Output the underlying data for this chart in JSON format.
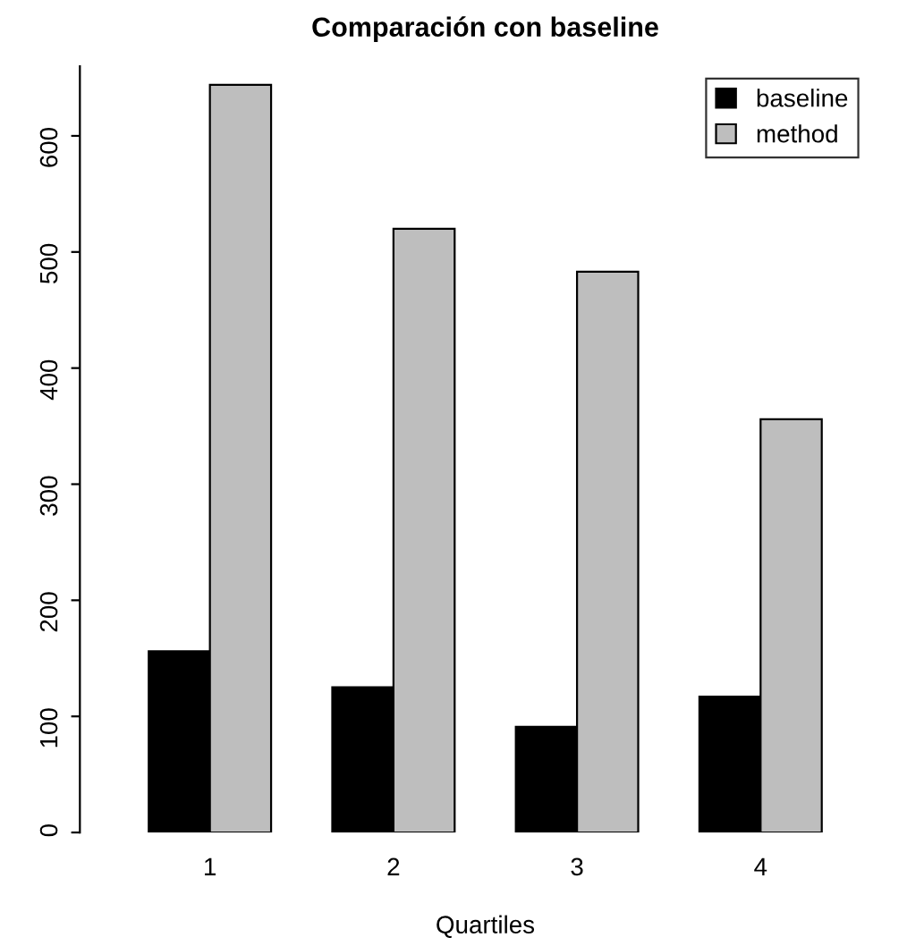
{
  "chart_data": {
    "type": "bar",
    "title": "Comparación con baseline",
    "xlabel": "Quartiles",
    "categories": [
      "1",
      "2",
      "3",
      "4"
    ],
    "series": [
      {
        "name": "baseline",
        "color": "#000000",
        "values": [
          156,
          125,
          91,
          117
        ]
      },
      {
        "name": "method",
        "color": "#bebebe",
        "values": [
          644,
          520,
          483,
          356
        ]
      }
    ],
    "ylim": [
      0,
      660
    ],
    "yticks": [
      0,
      100,
      200,
      300,
      400,
      500,
      600
    ],
    "grid": false,
    "legend": "top right"
  }
}
